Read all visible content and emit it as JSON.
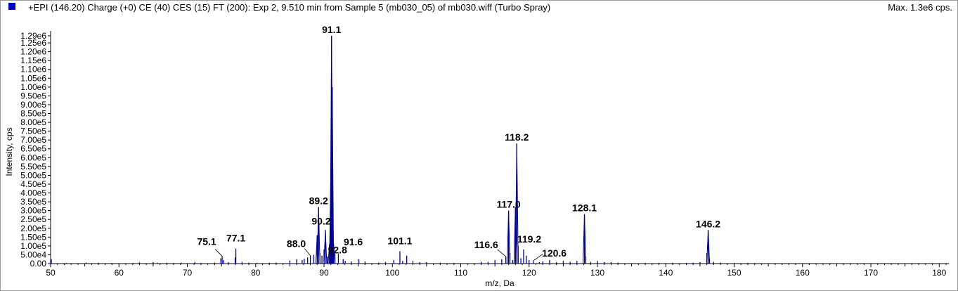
{
  "header": {
    "title": "+EPI (146.20) Charge (+0) CE (40) CES (15) FT (200): Exp 2, 9.510 min from Sample 5 (mb030_05) of mb030.wiff (Turbo Spray)",
    "max_label": "Max. 1.3e6 cps."
  },
  "colors": {
    "spectrum": "#00008b",
    "legend": "#0000cc",
    "axis": "#000000"
  },
  "chart_data": {
    "type": "bar",
    "title": "+EPI (146.20) Charge (+0) CE (40) CES (15) FT (200): Exp 2, 9.510 min from Sample 5 (mb030_05) of mb030.wiff (Turbo Spray)",
    "xlabel": "m/z, Da",
    "ylabel": "Intensity, cps",
    "xlim": [
      50,
      181
    ],
    "ylim": [
      0,
      1300000
    ],
    "xticks": [
      50,
      60,
      70,
      80,
      90,
      100,
      110,
      120,
      130,
      140,
      150,
      160,
      170,
      180
    ],
    "yticks": [
      {
        "value": 0,
        "label": "0.00"
      },
      {
        "value": 50000,
        "label": "5.00e4"
      },
      {
        "value": 100000,
        "label": "1.00e5"
      },
      {
        "value": 150000,
        "label": "1.50e5"
      },
      {
        "value": 200000,
        "label": "2.00e5"
      },
      {
        "value": 250000,
        "label": "2.50e5"
      },
      {
        "value": 300000,
        "label": "3.00e5"
      },
      {
        "value": 350000,
        "label": "3.50e5"
      },
      {
        "value": 400000,
        "label": "4.00e5"
      },
      {
        "value": 450000,
        "label": "4.50e5"
      },
      {
        "value": 500000,
        "label": "5.00e5"
      },
      {
        "value": 550000,
        "label": "5.50e5"
      },
      {
        "value": 600000,
        "label": "6.00e5"
      },
      {
        "value": 650000,
        "label": "6.50e5"
      },
      {
        "value": 700000,
        "label": "7.00e5"
      },
      {
        "value": 750000,
        "label": "7.50e5"
      },
      {
        "value": 800000,
        "label": "8.00e5"
      },
      {
        "value": 850000,
        "label": "8.50e5"
      },
      {
        "value": 900000,
        "label": "9.00e5"
      },
      {
        "value": 950000,
        "label": "9.50e5"
      },
      {
        "value": 1000000,
        "label": "1.00e6"
      },
      {
        "value": 1050000,
        "label": "1.05e6"
      },
      {
        "value": 1100000,
        "label": "1.10e6"
      },
      {
        "value": 1150000,
        "label": "1.15e6"
      },
      {
        "value": 1200000,
        "label": "1.20e6"
      },
      {
        "value": 1250000,
        "label": "1.25e6"
      },
      {
        "value": 1290000,
        "label": "1.29e6"
      }
    ],
    "peaks": [
      {
        "mz": 50.1,
        "intensity": 25000
      },
      {
        "mz": 52.3,
        "intensity": 4000
      },
      {
        "mz": 55.2,
        "intensity": 6000
      },
      {
        "mz": 57.0,
        "intensity": 5000
      },
      {
        "mz": 58.9,
        "intensity": 4000
      },
      {
        "mz": 62.1,
        "intensity": 4000
      },
      {
        "mz": 63.0,
        "intensity": 7000
      },
      {
        "mz": 65.0,
        "intensity": 8000
      },
      {
        "mz": 65.6,
        "intensity": 5000
      },
      {
        "mz": 67.0,
        "intensity": 5000
      },
      {
        "mz": 68.0,
        "intensity": 4000
      },
      {
        "mz": 69.1,
        "intensity": 5000
      },
      {
        "mz": 71.1,
        "intensity": 9000
      },
      {
        "mz": 72.0,
        "intensity": 4000
      },
      {
        "mz": 74.0,
        "intensity": 6000
      },
      {
        "mz": 74.9,
        "intensity": 30000
      },
      {
        "mz": 75.1,
        "intensity": 42000
      },
      {
        "mz": 75.3,
        "intensity": 20000
      },
      {
        "mz": 76.0,
        "intensity": 8000
      },
      {
        "mz": 77.0,
        "intensity": 35000
      },
      {
        "mz": 77.1,
        "intensity": 85000
      },
      {
        "mz": 78.0,
        "intensity": 10000
      },
      {
        "mz": 79.0,
        "intensity": 6000
      },
      {
        "mz": 80.2,
        "intensity": 4000
      },
      {
        "mz": 82.0,
        "intensity": 5000
      },
      {
        "mz": 83.0,
        "intensity": 6000
      },
      {
        "mz": 85.0,
        "intensity": 18000
      },
      {
        "mz": 86.0,
        "intensity": 25000
      },
      {
        "mz": 86.8,
        "intensity": 20000
      },
      {
        "mz": 87.1,
        "intensity": 28000
      },
      {
        "mz": 87.6,
        "intensity": 35000
      },
      {
        "mz": 88.0,
        "intensity": 45000
      },
      {
        "mz": 88.5,
        "intensity": 50000
      },
      {
        "mz": 89.0,
        "intensity": 160000
      },
      {
        "mz": 89.2,
        "intensity": 320000
      },
      {
        "mz": 89.4,
        "intensity": 60000
      },
      {
        "mz": 89.7,
        "intensity": 45000
      },
      {
        "mz": 90.0,
        "intensity": 80000
      },
      {
        "mz": 90.2,
        "intensity": 190000
      },
      {
        "mz": 90.5,
        "intensity": 40000
      },
      {
        "mz": 90.8,
        "intensity": 110000
      },
      {
        "mz": 91.0,
        "intensity": 530000
      },
      {
        "mz": 91.1,
        "intensity": 1290000
      },
      {
        "mz": 91.2,
        "intensity": 1000000
      },
      {
        "mz": 91.4,
        "intensity": 110000
      },
      {
        "mz": 91.6,
        "intensity": 55000
      },
      {
        "mz": 92.1,
        "intensity": 55000
      },
      {
        "mz": 92.8,
        "intensity": 25000
      },
      {
        "mz": 93.1,
        "intensity": 15000
      },
      {
        "mz": 94.0,
        "intensity": 12000
      },
      {
        "mz": 95.1,
        "intensity": 25000
      },
      {
        "mz": 96.0,
        "intensity": 12000
      },
      {
        "mz": 98.0,
        "intensity": 6000
      },
      {
        "mz": 99.0,
        "intensity": 10000
      },
      {
        "mz": 100.2,
        "intensity": 20000
      },
      {
        "mz": 101.1,
        "intensity": 70000
      },
      {
        "mz": 101.5,
        "intensity": 15000
      },
      {
        "mz": 102.1,
        "intensity": 45000
      },
      {
        "mz": 103.0,
        "intensity": 15000
      },
      {
        "mz": 104.0,
        "intensity": 8000
      },
      {
        "mz": 105.0,
        "intensity": 8000
      },
      {
        "mz": 107.0,
        "intensity": 5000
      },
      {
        "mz": 109.0,
        "intensity": 4000
      },
      {
        "mz": 113.0,
        "intensity": 10000
      },
      {
        "mz": 114.0,
        "intensity": 10000
      },
      {
        "mz": 115.0,
        "intensity": 20000
      },
      {
        "mz": 116.0,
        "intensity": 25000
      },
      {
        "mz": 116.6,
        "intensity": 40000
      },
      {
        "mz": 117.0,
        "intensity": 300000
      },
      {
        "mz": 117.2,
        "intensity": 60000
      },
      {
        "mz": 117.6,
        "intensity": 20000
      },
      {
        "mz": 118.0,
        "intensity": 320000
      },
      {
        "mz": 118.2,
        "intensity": 680000
      },
      {
        "mz": 118.4,
        "intensity": 100000
      },
      {
        "mz": 118.8,
        "intensity": 30000
      },
      {
        "mz": 119.2,
        "intensity": 80000
      },
      {
        "mz": 119.6,
        "intensity": 45000
      },
      {
        "mz": 120.0,
        "intensity": 20000
      },
      {
        "mz": 120.6,
        "intensity": 15000
      },
      {
        "mz": 121.5,
        "intensity": 8000
      },
      {
        "mz": 122.0,
        "intensity": 12000
      },
      {
        "mz": 123.0,
        "intensity": 20000
      },
      {
        "mz": 124.0,
        "intensity": 8000
      },
      {
        "mz": 125.0,
        "intensity": 15000
      },
      {
        "mz": 126.0,
        "intensity": 10000
      },
      {
        "mz": 127.0,
        "intensity": 15000
      },
      {
        "mz": 128.1,
        "intensity": 280000
      },
      {
        "mz": 128.3,
        "intensity": 40000
      },
      {
        "mz": 129.0,
        "intensity": 10000
      },
      {
        "mz": 130.0,
        "intensity": 15000
      },
      {
        "mz": 131.0,
        "intensity": 8000
      },
      {
        "mz": 132.0,
        "intensity": 8000
      },
      {
        "mz": 133.0,
        "intensity": 6000
      },
      {
        "mz": 137.0,
        "intensity": 4000
      },
      {
        "mz": 139.0,
        "intensity": 4000
      },
      {
        "mz": 141.0,
        "intensity": 5000
      },
      {
        "mz": 143.0,
        "intensity": 4000
      },
      {
        "mz": 144.0,
        "intensity": 5000
      },
      {
        "mz": 145.0,
        "intensity": 8000
      },
      {
        "mz": 146.0,
        "intensity": 60000
      },
      {
        "mz": 146.2,
        "intensity": 190000
      },
      {
        "mz": 146.4,
        "intensity": 30000
      },
      {
        "mz": 147.0,
        "intensity": 10000
      },
      {
        "mz": 148.0,
        "intensity": 6000
      },
      {
        "mz": 150.0,
        "intensity": 4000
      },
      {
        "mz": 152.0,
        "intensity": 4000
      },
      {
        "mz": 153.0,
        "intensity": 3000
      }
    ],
    "annotations": [
      {
        "text": "91.1",
        "mz": 91.1,
        "intensity": 1290000
      },
      {
        "text": "118.2",
        "mz": 118.2,
        "intensity": 680000
      },
      {
        "text": "89.2",
        "mz": 89.2,
        "intensity": 320000
      },
      {
        "text": "117.0",
        "mz": 117.0,
        "intensity": 300000
      },
      {
        "text": "128.1",
        "mz": 128.1,
        "intensity": 280000
      },
      {
        "text": "146.2",
        "mz": 146.2,
        "intensity": 190000
      },
      {
        "text": "90.2",
        "mz": 90.2,
        "intensity": 190000
      },
      {
        "text": "75.1",
        "mz": 75.1,
        "intensity": 42000
      },
      {
        "text": "77.1",
        "mz": 77.1,
        "intensity": 85000
      },
      {
        "text": "88.0",
        "mz": 88.0,
        "intensity": 45000
      },
      {
        "text": "92.8",
        "mz": 92.8,
        "intensity": 25000
      },
      {
        "text": "91.6",
        "mz": 91.6,
        "intensity": 55000
      },
      {
        "text": "101.1",
        "mz": 101.1,
        "intensity": 70000
      },
      {
        "text": "116.6",
        "mz": 116.6,
        "intensity": 40000
      },
      {
        "text": "119.2",
        "mz": 119.2,
        "intensity": 80000
      },
      {
        "text": "120.6",
        "mz": 120.6,
        "intensity": 15000
      }
    ]
  }
}
